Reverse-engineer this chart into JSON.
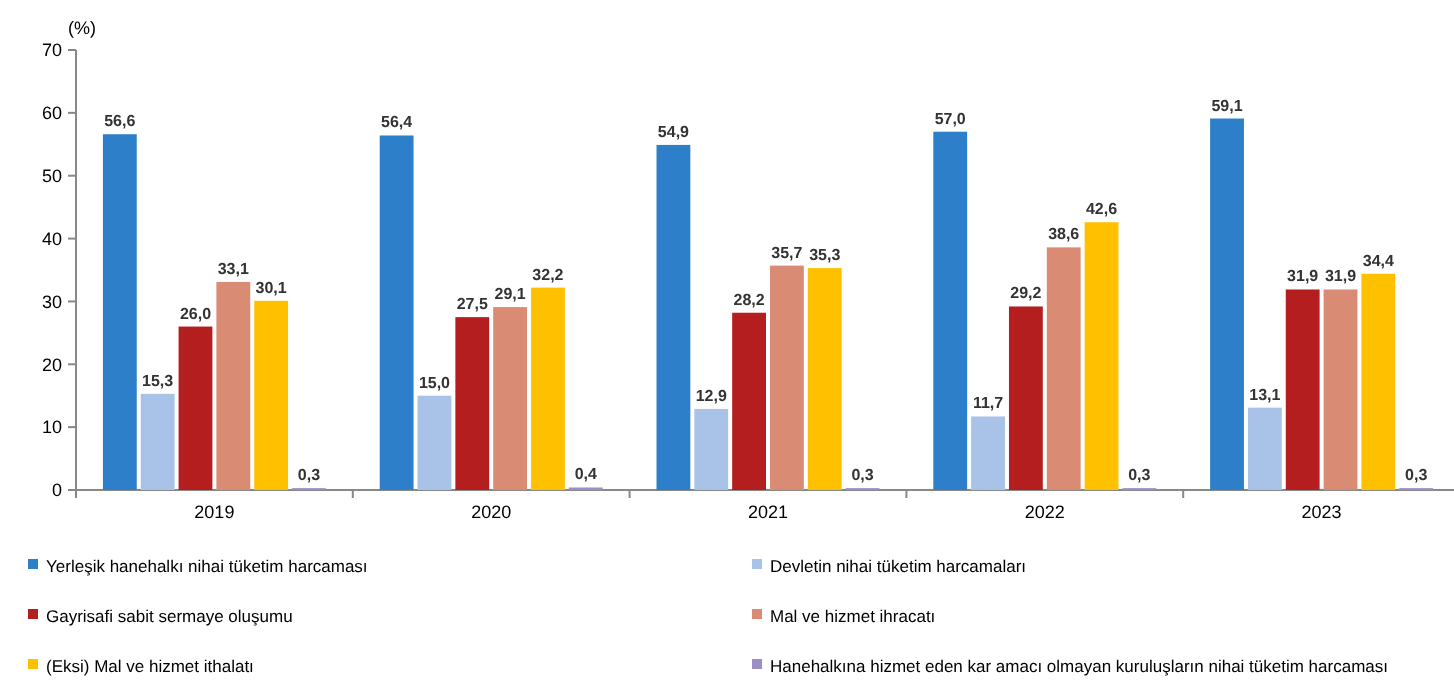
{
  "chart_data": {
    "type": "bar",
    "ylabel": "(%)",
    "categories": [
      "2019",
      "2020",
      "2021",
      "2022",
      "2023"
    ],
    "ylim": [
      0,
      70
    ],
    "yticks": [
      0,
      10,
      20,
      30,
      40,
      50,
      60,
      70
    ],
    "grid": false,
    "legend": "bottom",
    "series": [
      {
        "name": "Yerleşik hanehalkı nihai tüketim harcaması",
        "color": "#2e7fc9",
        "values": [
          56.6,
          56.4,
          54.9,
          57.0,
          59.1
        ],
        "value_labels": [
          "56,6",
          "56,4",
          "54,9",
          "57,0",
          "59,1"
        ]
      },
      {
        "name": "Devletin nihai tüketim harcamaları",
        "color": "#a9c2e8",
        "values": [
          15.3,
          15.0,
          12.9,
          11.7,
          13.1
        ],
        "value_labels": [
          "15,3",
          "15,0",
          "12,9",
          "11,7",
          "13,1"
        ]
      },
      {
        "name": "Gayrisafi sabit sermaye oluşumu",
        "color": "#b41e1e",
        "values": [
          26.0,
          27.5,
          28.2,
          29.2,
          31.9
        ],
        "value_labels": [
          "26,0",
          "27,5",
          "28,2",
          "29,2",
          "31,9"
        ]
      },
      {
        "name": "Mal ve hizmet ihracatı",
        "color": "#d98b73",
        "values": [
          33.1,
          29.1,
          35.7,
          38.6,
          31.9
        ],
        "value_labels": [
          "33,1",
          "29,1",
          "35,7",
          "38,6",
          "31,9"
        ]
      },
      {
        "name": "(Eksi) Mal ve hizmet ithalatı",
        "color": "#ffc000",
        "values": [
          30.1,
          32.2,
          35.3,
          42.6,
          34.4
        ],
        "value_labels": [
          "30,1",
          "32,2",
          "35,3",
          "42,6",
          "34,4"
        ]
      },
      {
        "name": "Hanehalkına hizmet eden kar amacı olmayan kuruluşların nihai tüketim harcaması",
        "color": "#9e8ec6",
        "values": [
          0.3,
          0.4,
          0.3,
          0.3,
          0.3
        ],
        "value_labels": [
          "0,3",
          "0,4",
          "0,3",
          "0,3",
          "0,3"
        ]
      }
    ]
  }
}
